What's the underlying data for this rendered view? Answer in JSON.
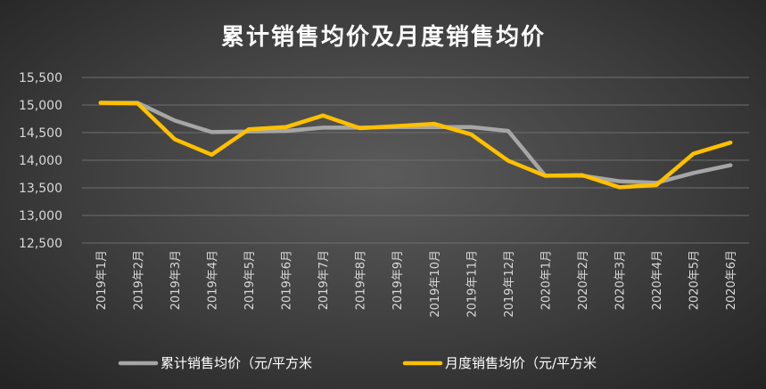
{
  "chart_data": {
    "type": "line",
    "title": "累计销售均价及月度销售均价",
    "categories": [
      "2019年1月",
      "2019年2月",
      "2019年3月",
      "2019年4月",
      "2019年5月",
      "2019年6月",
      "2019年7月",
      "2019年8月",
      "2019年9月",
      "2019年10月",
      "2019年11月",
      "2019年12月",
      "2020年1月",
      "2020年2月",
      "2020年3月",
      "2020年4月",
      "2020年5月",
      "2020年6月"
    ],
    "ylim": [
      12500,
      15500
    ],
    "yticks": [
      12500,
      13000,
      13500,
      14000,
      14500,
      15000,
      15500
    ],
    "ytick_labels": [
      "12,500",
      "13,000",
      "13,500",
      "14,000",
      "14,500",
      "15,000",
      "15,500"
    ],
    "grid": true,
    "legend_position": "bottom",
    "series": [
      {
        "name": "累计销售均价（元/平方米",
        "color": "#a6a6a6",
        "values": [
          15040,
          15040,
          14720,
          14510,
          14520,
          14530,
          14590,
          14590,
          14600,
          14600,
          14600,
          14530,
          13720,
          13720,
          13620,
          13590,
          13770,
          13910
        ]
      },
      {
        "name": "月度销售均价（元/平方米",
        "color": "#ffc000",
        "values": [
          15040,
          15030,
          14380,
          14100,
          14560,
          14600,
          14810,
          14580,
          14620,
          14660,
          14470,
          13990,
          13720,
          13730,
          13510,
          13550,
          14120,
          14320
        ]
      }
    ]
  }
}
